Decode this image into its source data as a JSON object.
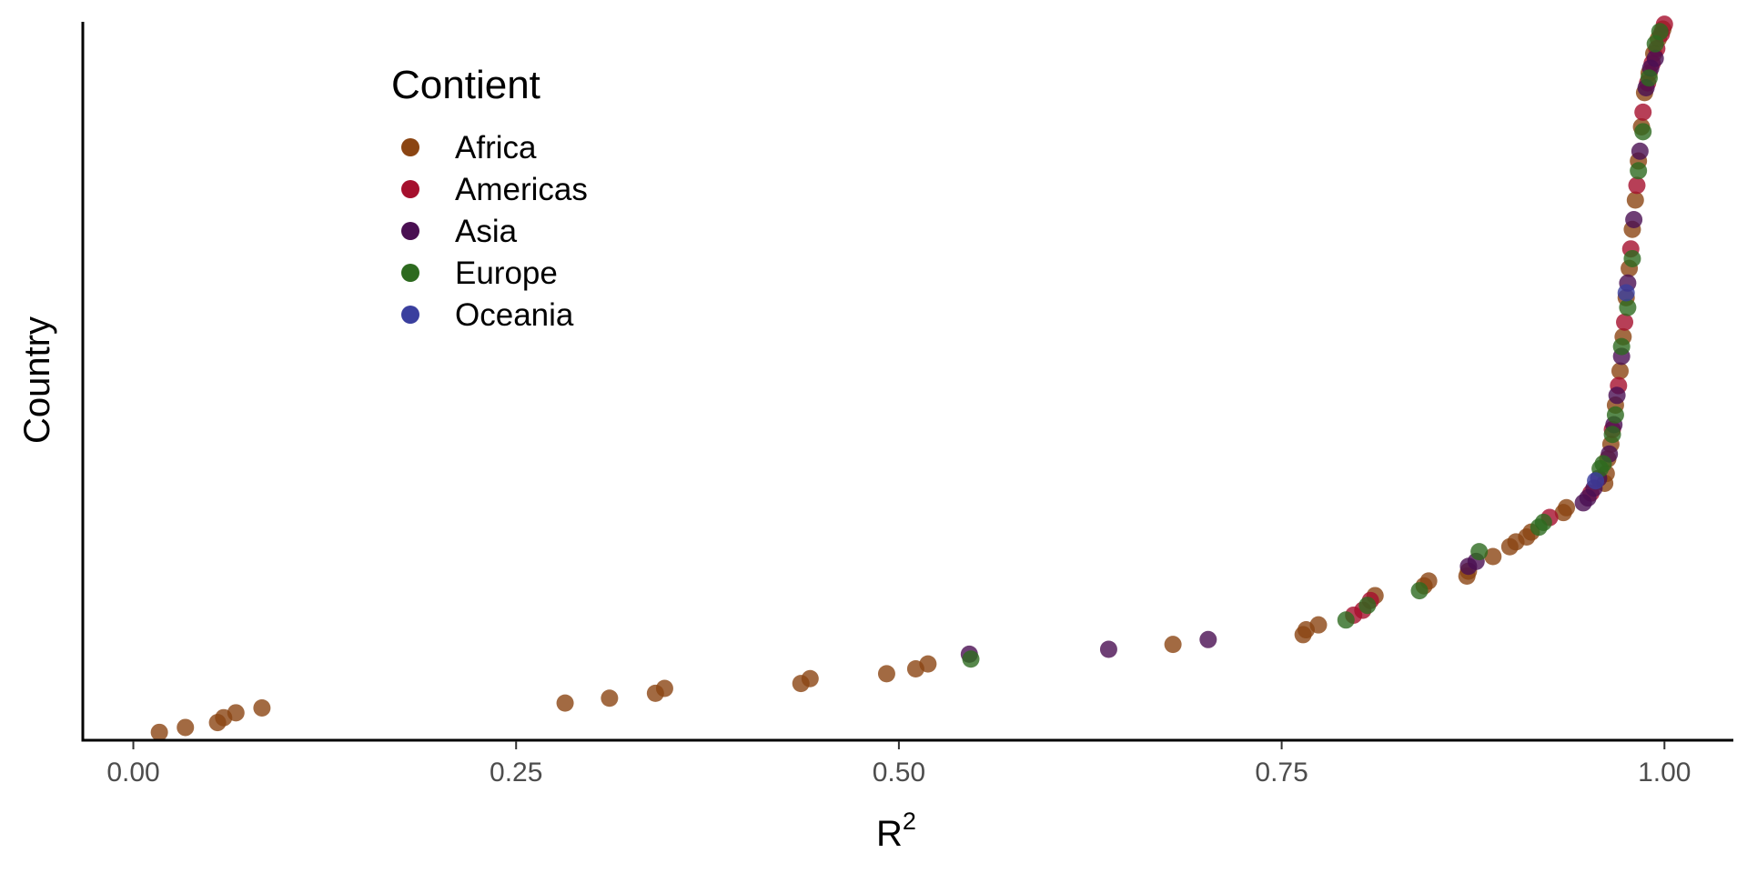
{
  "chart_data": {
    "type": "scatter",
    "title": "",
    "xlabel": "R",
    "xlabel_superscript": "2",
    "ylabel": "Country",
    "xlim": [
      -0.033,
      1.045
    ],
    "xticks": [
      0.0,
      0.25,
      0.5,
      0.75,
      1.0
    ],
    "xtick_labels": [
      "0.00",
      "0.25",
      "0.50",
      "0.75",
      "1.00"
    ],
    "y_ticks_shown": false,
    "grid": false,
    "legend": {
      "title": "Contient",
      "placement": "top-left",
      "entries": [
        "Africa",
        "Americas",
        "Asia",
        "Europe",
        "Oceania"
      ]
    },
    "colors": {
      "Africa": "#8B4513",
      "Americas": "#A50F2D",
      "Asia": "#4A0F52",
      "Europe": "#2D6A1F",
      "Oceania": "#3A3F9E"
    },
    "point_opacity": 0.8,
    "series": [
      {
        "name": "Africa",
        "points": [
          [
            0.017,
            1
          ],
          [
            0.034,
            2
          ],
          [
            0.055,
            3
          ],
          [
            0.059,
            4
          ],
          [
            0.067,
            5
          ],
          [
            0.084,
            6
          ],
          [
            0.282,
            7
          ],
          [
            0.311,
            8
          ],
          [
            0.341,
            9
          ],
          [
            0.347,
            10
          ],
          [
            0.436,
            11
          ],
          [
            0.442,
            12
          ],
          [
            0.492,
            13
          ],
          [
            0.511,
            14
          ],
          [
            0.519,
            15
          ],
          [
            0.679,
            19
          ],
          [
            0.764,
            21
          ],
          [
            0.766,
            22
          ],
          [
            0.774,
            23
          ],
          [
            0.811,
            29
          ],
          [
            0.843,
            31
          ],
          [
            0.846,
            32
          ],
          [
            0.871,
            33
          ],
          [
            0.872,
            34
          ],
          [
            0.888,
            37
          ],
          [
            0.899,
            39
          ],
          [
            0.903,
            40
          ],
          [
            0.91,
            41
          ],
          [
            0.913,
            42
          ],
          [
            0.934,
            46
          ],
          [
            0.936,
            47
          ],
          [
            0.961,
            52
          ],
          [
            0.962,
            54
          ],
          [
            0.963,
            57
          ],
          [
            0.965,
            60
          ],
          [
            0.968,
            68
          ],
          [
            0.971,
            75
          ],
          [
            0.973,
            82
          ],
          [
            0.975,
            90
          ],
          [
            0.977,
            96
          ],
          [
            0.979,
            104
          ],
          [
            0.981,
            110
          ],
          [
            0.983,
            118
          ],
          [
            0.985,
            125
          ],
          [
            0.987,
            132
          ],
          [
            0.99,
            136
          ],
          [
            0.993,
            140
          ],
          [
            0.996,
            143
          ],
          [
            0.999,
            145
          ]
        ]
      },
      {
        "name": "Americas",
        "points": [
          [
            0.797,
            25
          ],
          [
            0.803,
            26
          ],
          [
            0.808,
            28
          ],
          [
            0.925,
            45
          ],
          [
            0.952,
            50
          ],
          [
            0.966,
            63
          ],
          [
            0.97,
            72
          ],
          [
            0.974,
            85
          ],
          [
            0.978,
            100
          ],
          [
            0.982,
            113
          ],
          [
            0.986,
            128
          ],
          [
            0.989,
            134
          ],
          [
            0.992,
            138
          ],
          [
            0.995,
            141
          ],
          [
            0.998,
            144
          ],
          [
            1.0,
            146
          ]
        ]
      },
      {
        "name": "Asia",
        "points": [
          [
            0.546,
            17
          ],
          [
            0.637,
            18
          ],
          [
            0.702,
            20
          ],
          [
            0.872,
            35
          ],
          [
            0.877,
            36
          ],
          [
            0.947,
            48
          ],
          [
            0.95,
            49
          ],
          [
            0.954,
            51
          ],
          [
            0.957,
            53
          ],
          [
            0.964,
            58
          ],
          [
            0.967,
            64
          ],
          [
            0.969,
            70
          ],
          [
            0.972,
            78
          ],
          [
            0.976,
            93
          ],
          [
            0.98,
            106
          ],
          [
            0.984,
            120
          ],
          [
            0.988,
            133
          ],
          [
            0.991,
            137
          ],
          [
            0.994,
            139
          ]
        ]
      },
      {
        "name": "Europe",
        "points": [
          [
            0.547,
            16
          ],
          [
            0.792,
            24
          ],
          [
            0.806,
            27
          ],
          [
            0.84,
            30
          ],
          [
            0.879,
            38
          ],
          [
            0.918,
            43
          ],
          [
            0.921,
            44
          ],
          [
            0.958,
            55
          ],
          [
            0.96,
            56
          ],
          [
            0.966,
            62
          ],
          [
            0.968,
            66
          ],
          [
            0.972,
            80
          ],
          [
            0.976,
            88
          ],
          [
            0.979,
            98
          ],
          [
            0.983,
            116
          ],
          [
            0.986,
            124
          ],
          [
            0.99,
            135
          ],
          [
            0.994,
            142
          ],
          [
            0.997,
            144.5
          ]
        ]
      },
      {
        "name": "Oceania",
        "points": [
          [
            0.955,
            52.5
          ],
          [
            0.975,
            91
          ]
        ]
      }
    ],
    "ylim": [
      0.5,
      146.5
    ]
  }
}
